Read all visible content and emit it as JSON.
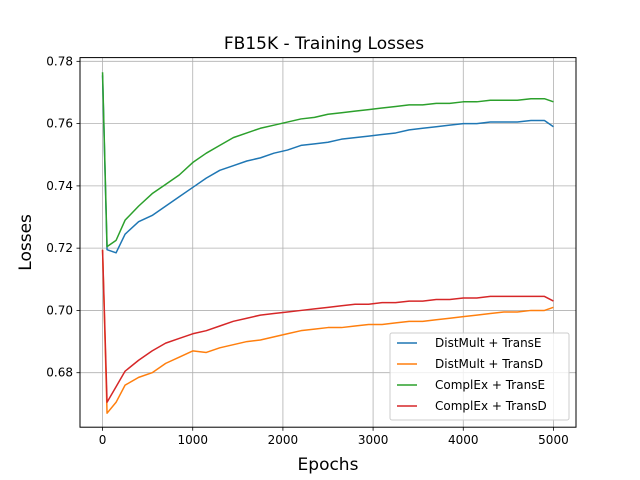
{
  "chart_data": {
    "type": "line",
    "title": "FB15K - Training Losses",
    "xlabel": "Epochs",
    "ylabel": "Losses",
    "xlim": [
      -250,
      5250
    ],
    "ylim": [
      0.6625,
      0.7812
    ],
    "xticks": [
      0,
      1000,
      2000,
      3000,
      4000,
      5000
    ],
    "yticks": [
      0.68,
      0.7,
      0.72,
      0.74,
      0.76,
      0.78
    ],
    "grid": true,
    "legend_position": "lower right",
    "x": [
      0,
      50,
      150,
      250,
      400,
      550,
      700,
      850,
      1000,
      1150,
      1300,
      1450,
      1600,
      1750,
      1900,
      2050,
      2200,
      2350,
      2500,
      2650,
      2800,
      2950,
      3100,
      3250,
      3400,
      3550,
      3700,
      3850,
      4000,
      4150,
      4300,
      4450,
      4600,
      4750,
      4900,
      5000
    ],
    "series": [
      {
        "name": "DistMult + TransE",
        "color": "#1f77b4",
        "values": [
          0.7755,
          0.7195,
          0.7185,
          0.7245,
          0.7285,
          0.7305,
          0.7335,
          0.7365,
          0.7395,
          0.7425,
          0.745,
          0.7465,
          0.748,
          0.749,
          0.7505,
          0.7515,
          0.753,
          0.7535,
          0.754,
          0.755,
          0.7555,
          0.756,
          0.7565,
          0.757,
          0.758,
          0.7585,
          0.759,
          0.7595,
          0.76,
          0.76,
          0.7605,
          0.7605,
          0.7605,
          0.761,
          0.761,
          0.759
        ]
      },
      {
        "name": "DistMult + TransD",
        "color": "#ff7f0e",
        "values": [
          0.7195,
          0.667,
          0.6705,
          0.676,
          0.6785,
          0.68,
          0.683,
          0.685,
          0.687,
          0.6865,
          0.688,
          0.689,
          0.69,
          0.6905,
          0.6915,
          0.6925,
          0.6935,
          0.694,
          0.6945,
          0.6945,
          0.695,
          0.6955,
          0.6955,
          0.696,
          0.6965,
          0.6965,
          0.697,
          0.6975,
          0.698,
          0.6985,
          0.699,
          0.6995,
          0.6995,
          0.7,
          0.7,
          0.701
        ]
      },
      {
        "name": "ComplEx + TransE",
        "color": "#2ca02c",
        "values": [
          0.7765,
          0.7205,
          0.7225,
          0.729,
          0.7335,
          0.7375,
          0.7405,
          0.7435,
          0.7475,
          0.7505,
          0.753,
          0.7555,
          0.757,
          0.7585,
          0.7595,
          0.7605,
          0.7615,
          0.762,
          0.763,
          0.7635,
          0.764,
          0.7645,
          0.765,
          0.7655,
          0.766,
          0.766,
          0.7665,
          0.7665,
          0.767,
          0.767,
          0.7675,
          0.7675,
          0.7675,
          0.768,
          0.768,
          0.767
        ]
      },
      {
        "name": "ComplEx + TransD",
        "color": "#d62728",
        "values": [
          0.7195,
          0.6705,
          0.6755,
          0.6805,
          0.684,
          0.687,
          0.6895,
          0.691,
          0.6925,
          0.6935,
          0.695,
          0.6965,
          0.6975,
          0.6985,
          0.699,
          0.6995,
          0.7,
          0.7005,
          0.701,
          0.7015,
          0.702,
          0.702,
          0.7025,
          0.7025,
          0.703,
          0.703,
          0.7035,
          0.7035,
          0.704,
          0.704,
          0.7045,
          0.7045,
          0.7045,
          0.7045,
          0.7045,
          0.703
        ]
      }
    ]
  }
}
